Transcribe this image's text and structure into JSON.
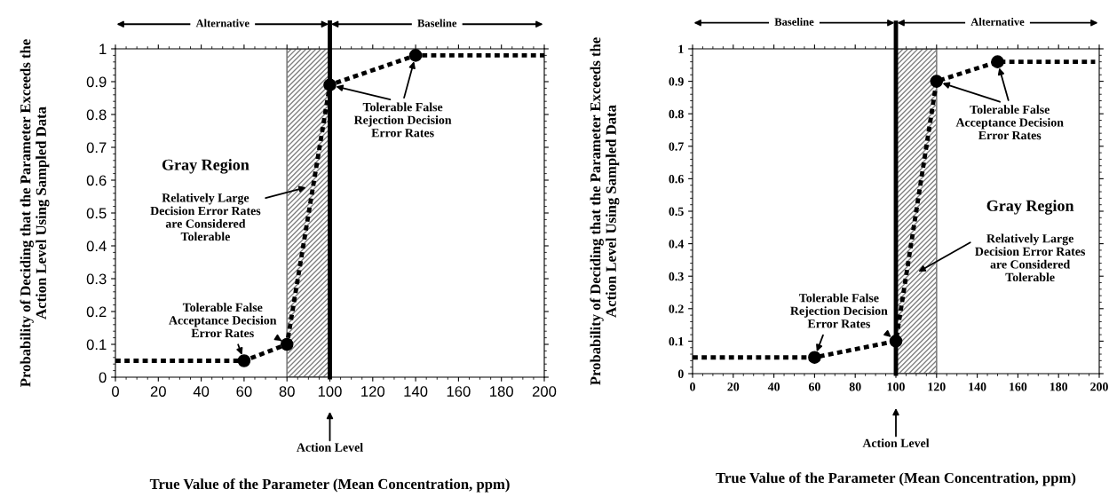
{
  "chart_data": [
    {
      "type": "line",
      "xlabel": "True Value of the Parameter (Mean Concentration, ppm)",
      "ylabel": "Probability of Deciding that the Parameter Exceeds the\nAction Level Using Sampled Data",
      "xlim": [
        0,
        200
      ],
      "ylim": [
        0,
        1
      ],
      "xticks": [
        0,
        20,
        40,
        60,
        80,
        100,
        120,
        140,
        160,
        180,
        200
      ],
      "yticks": [
        0,
        0.1,
        0.2,
        0.3,
        0.4,
        0.5,
        0.6,
        0.7,
        0.8,
        0.9,
        1
      ],
      "series": [
        {
          "color": "#000000",
          "line_style": "dashed",
          "marker": "none",
          "x": [
            0,
            60,
            80,
            100,
            140,
            200
          ],
          "values": [
            0.05,
            0.05,
            0.1,
            0.89,
            0.98,
            0.98
          ]
        },
        {
          "type": "scatter",
          "color": "#000000",
          "marker": "circle",
          "x": [
            60,
            80,
            100,
            140
          ],
          "values": [
            0.05,
            0.1,
            0.89,
            0.98
          ]
        }
      ],
      "bands": [
        {
          "axis": "x",
          "from": 80,
          "to": 100,
          "color": "#808080"
        }
      ],
      "ref_lines": [
        {
          "axis": "x",
          "value": 100,
          "label": "Action Level",
          "color": "#000000"
        }
      ],
      "annotations": [
        "Alternative",
        "Baseline",
        "Gray Region",
        "Relatively Large\nDecision Error Rates\nare Considered\nTolerable",
        {
          "text": "Tolerable False\nRejection Decision\nError Rates",
          "x": 140,
          "y": 0.98
        },
        {
          "text": "Tolerable False\nAcceptance Decision\nError Rates",
          "x": 80,
          "y": 0.1
        }
      ]
    },
    {
      "type": "line",
      "xlabel": "True Value of the Parameter (Mean Concentration, ppm)",
      "ylabel": "Probability of Deciding that the Parameter Exceeds the\nAction Level Using Sampled Data",
      "xlim": [
        0,
        200
      ],
      "ylim": [
        0,
        1
      ],
      "xticks": [
        0,
        20,
        40,
        60,
        80,
        100,
        120,
        140,
        160,
        180,
        200
      ],
      "yticks": [
        0,
        0.1,
        0.2,
        0.3,
        0.4,
        0.5,
        0.6,
        0.7,
        0.8,
        0.9,
        1
      ],
      "series": [
        {
          "color": "#000000",
          "line_style": "dashed",
          "marker": "none",
          "x": [
            0,
            60,
            100,
            120,
            150,
            198
          ],
          "values": [
            0.05,
            0.05,
            0.1,
            0.9,
            0.96,
            0.96
          ]
        },
        {
          "type": "scatter",
          "color": "#000000",
          "marker": "circle",
          "x": [
            60,
            100,
            120,
            150
          ],
          "values": [
            0.05,
            0.1,
            0.9,
            0.96
          ]
        }
      ],
      "bands": [
        {
          "axis": "x",
          "from": 100,
          "to": 120,
          "color": "#808080"
        }
      ],
      "ref_lines": [
        {
          "axis": "x",
          "value": 100,
          "label": "Action Level",
          "color": "#000000"
        }
      ],
      "annotations": [
        "Baseline",
        "Alternative",
        "Gray Region",
        "Relatively Large\nDecision Error Rates\nare Considered\nTolerable",
        {
          "text": "Tolerable False\nAcceptance Decision\nError Rates",
          "x": 150,
          "y": 0.96
        },
        {
          "text": "Tolerable False\nRejection Decision\nError Rates",
          "x": 100,
          "y": 0.1
        }
      ]
    }
  ]
}
